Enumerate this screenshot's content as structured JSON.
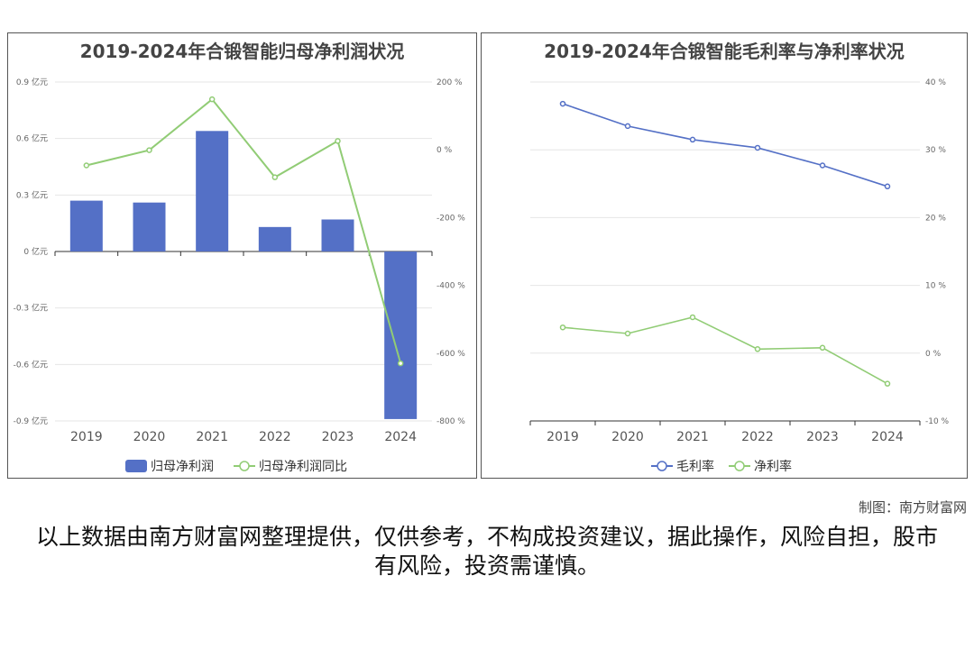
{
  "charts": [
    {
      "title": "2019-2024年合锻智能归母净利润状况",
      "legend": [
        "归母净利润",
        "归母净利润同比"
      ]
    },
    {
      "title": "2019-2024年合锻智能毛利率与净利率状况",
      "legend": [
        "毛利率",
        "净利率"
      ]
    }
  ],
  "chart_data": [
    {
      "type": "bar",
      "title": "2019-2024年合锻智能归母净利润状况",
      "categories": [
        "2019",
        "2020",
        "2021",
        "2022",
        "2023",
        "2024"
      ],
      "series": [
        {
          "name": "归母净利润",
          "type": "bar",
          "axis": "left",
          "color": "#5470c6",
          "values": [
            0.27,
            0.26,
            0.64,
            0.13,
            0.17,
            -0.89
          ]
        },
        {
          "name": "归母净利润同比",
          "type": "line",
          "axis": "right",
          "color": "#91cc75",
          "values": [
            -46,
            -1,
            149,
            -81,
            26,
            -630
          ]
        }
      ],
      "left_axis": {
        "ticks": [
          "0.9 亿元",
          "0.6 亿元",
          "0.3 亿元",
          "0 亿元",
          "-0.3 亿元",
          "-0.6 亿元",
          "-0.9 亿元"
        ],
        "ylim": [
          -0.9,
          0.9
        ]
      },
      "right_axis": {
        "ticks": [
          "200 %",
          "0 %",
          "-200 %",
          "-400 %",
          "-600 %",
          "-800 %"
        ],
        "ylim": [
          -800,
          200
        ]
      },
      "legend_position": "bottom"
    },
    {
      "type": "line",
      "title": "2019-2024年合锻智能毛利率与净利率状况",
      "categories": [
        "2019",
        "2020",
        "2021",
        "2022",
        "2023",
        "2024"
      ],
      "series": [
        {
          "name": "毛利率",
          "color": "#5470c6",
          "values": [
            36.8,
            33.5,
            31.5,
            30.3,
            27.7,
            24.6
          ]
        },
        {
          "name": "净利率",
          "color": "#91cc75",
          "values": [
            3.8,
            2.9,
            5.3,
            0.6,
            0.8,
            -4.5
          ]
        }
      ],
      "right_axis": {
        "ticks": [
          "40 %",
          "30 %",
          "20 %",
          "10 %",
          "0 %",
          "-10 %"
        ],
        "ylim": [
          -10,
          40
        ]
      },
      "legend_position": "bottom"
    }
  ],
  "footer": {
    "credit": "制图：南方财富网",
    "disclaimer": "以上数据由南方财富网整理提供，仅供参考，不构成投资建议，据此操作，风险自担，股市有风险，投资需谨慎。"
  }
}
